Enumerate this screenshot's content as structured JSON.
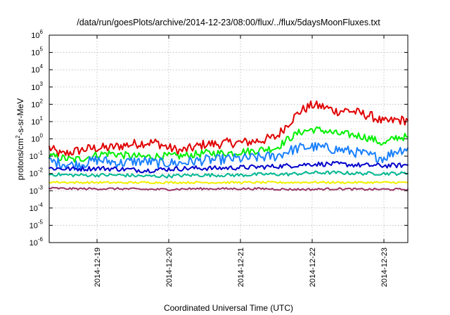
{
  "chart_data": {
    "type": "line",
    "title": "/data/run/goesPlots/archive/2014-12-23/08:00/flux/../flux/5daysMoonFluxes.txt",
    "xlabel": "Coordinated Universal Time (UTC)",
    "ylabel": "protons/cm²-s-sr-MeV",
    "ylabel_parts": {
      "pre": "protons/cm",
      "sup": "2",
      "post": "-s-sr-MeV"
    },
    "yscale": "log",
    "ylim": [
      1e-06,
      1000000.0
    ],
    "yticks": [
      {
        "base": "10",
        "exp": "-6",
        "value": 1e-06
      },
      {
        "base": "10",
        "exp": "-5",
        "value": 1e-05
      },
      {
        "base": "10",
        "exp": "-4",
        "value": 0.0001
      },
      {
        "base": "10",
        "exp": "-3",
        "value": 0.001
      },
      {
        "base": "10",
        "exp": "-2",
        "value": 0.01
      },
      {
        "base": "10",
        "exp": "-1",
        "value": 0.1
      },
      {
        "base": "10",
        "exp": "0",
        "value": 1
      },
      {
        "base": "10",
        "exp": "1",
        "value": 10
      },
      {
        "base": "10",
        "exp": "2",
        "value": 100
      },
      {
        "base": "10",
        "exp": "3",
        "value": 1000
      },
      {
        "base": "10",
        "exp": "4",
        "value": 10000
      },
      {
        "base": "10",
        "exp": "5",
        "value": 100000
      },
      {
        "base": "10",
        "exp": "6",
        "value": 1000000
      }
    ],
    "xlim": [
      "2014-12-18T08:00",
      "2014-12-23T08:00"
    ],
    "xticks": [
      {
        "label": "2014-12-19",
        "value": "2014-12-19T00:00"
      },
      {
        "label": "2014-12-20",
        "value": "2014-12-20T00:00"
      },
      {
        "label": "2014-12-21",
        "value": "2014-12-21T00:00"
      },
      {
        "label": "2014-12-22",
        "value": "2014-12-22T00:00"
      },
      {
        "label": "2014-12-23",
        "value": "2014-12-23T00:00"
      }
    ],
    "grid": true,
    "legend": "none",
    "series": [
      {
        "color": "#e00000",
        "x": [
          "2014-12-18T08:00",
          "2014-12-18T12:00",
          "2014-12-18T16:00",
          "2014-12-18T20:00",
          "2014-12-19T00:00",
          "2014-12-19T04:00",
          "2014-12-19T08:00",
          "2014-12-19T12:00",
          "2014-12-19T16:00",
          "2014-12-19T20:00",
          "2014-12-20T00:00",
          "2014-12-20T04:00",
          "2014-12-20T08:00",
          "2014-12-20T12:00",
          "2014-12-20T16:00",
          "2014-12-20T20:00",
          "2014-12-21T00:00",
          "2014-12-21T04:00",
          "2014-12-21T08:00",
          "2014-12-21T12:00",
          "2014-12-21T16:00",
          "2014-12-21T20:00",
          "2014-12-22T00:00",
          "2014-12-22T04:00",
          "2014-12-22T08:00",
          "2014-12-22T12:00",
          "2014-12-22T16:00",
          "2014-12-22T20:00",
          "2014-12-23T00:00",
          "2014-12-23T04:00",
          "2014-12-23T08:00"
        ],
        "y": [
          0.3,
          0.12,
          0.18,
          0.25,
          0.3,
          0.3,
          0.4,
          0.5,
          0.6,
          0.6,
          0.3,
          0.2,
          0.3,
          0.5,
          0.5,
          0.6,
          0.6,
          0.7,
          0.9,
          1.3,
          8,
          40,
          90,
          70,
          40,
          45,
          30,
          20,
          9,
          12,
          12
        ]
      },
      {
        "color": "#00f000",
        "x": [
          "2014-12-18T08:00",
          "2014-12-18T12:00",
          "2014-12-18T16:00",
          "2014-12-18T20:00",
          "2014-12-19T00:00",
          "2014-12-19T04:00",
          "2014-12-19T08:00",
          "2014-12-19T12:00",
          "2014-12-19T16:00",
          "2014-12-19T20:00",
          "2014-12-20T00:00",
          "2014-12-20T04:00",
          "2014-12-20T08:00",
          "2014-12-20T12:00",
          "2014-12-20T16:00",
          "2014-12-20T20:00",
          "2014-12-21T00:00",
          "2014-12-21T04:00",
          "2014-12-21T08:00",
          "2014-12-21T12:00",
          "2014-12-21T16:00",
          "2014-12-21T20:00",
          "2014-12-22T00:00",
          "2014-12-22T04:00",
          "2014-12-22T08:00",
          "2014-12-22T12:00",
          "2014-12-22T16:00",
          "2014-12-22T20:00",
          "2014-12-23T00:00",
          "2014-12-23T04:00",
          "2014-12-23T08:00"
        ],
        "y": [
          0.1,
          0.08,
          0.06,
          0.08,
          0.12,
          0.15,
          0.12,
          0.1,
          0.09,
          0.1,
          0.1,
          0.1,
          0.12,
          0.15,
          0.15,
          0.15,
          0.18,
          0.2,
          0.25,
          0.3,
          1.0,
          2.5,
          3.5,
          3.0,
          2.0,
          1.8,
          1.5,
          1.0,
          0.5,
          1.2,
          1.3
        ]
      },
      {
        "color": "#1a80ff",
        "x": [
          "2014-12-18T08:00",
          "2014-12-18T12:00",
          "2014-12-18T16:00",
          "2014-12-18T20:00",
          "2014-12-19T00:00",
          "2014-12-19T04:00",
          "2014-12-19T08:00",
          "2014-12-19T12:00",
          "2014-12-19T16:00",
          "2014-12-19T20:00",
          "2014-12-20T00:00",
          "2014-12-20T04:00",
          "2014-12-20T08:00",
          "2014-12-20T12:00",
          "2014-12-20T16:00",
          "2014-12-20T20:00",
          "2014-12-21T00:00",
          "2014-12-21T04:00",
          "2014-12-21T08:00",
          "2014-12-21T12:00",
          "2014-12-21T16:00",
          "2014-12-21T20:00",
          "2014-12-22T00:00",
          "2014-12-22T04:00",
          "2014-12-22T08:00",
          "2014-12-22T12:00",
          "2014-12-22T16:00",
          "2014-12-22T20:00",
          "2014-12-23T00:00",
          "2014-12-23T04:00",
          "2014-12-23T08:00"
        ],
        "y": [
          0.05,
          0.04,
          0.03,
          0.04,
          0.06,
          0.05,
          0.04,
          0.05,
          0.05,
          0.04,
          0.04,
          0.04,
          0.05,
          0.06,
          0.06,
          0.07,
          0.07,
          0.08,
          0.09,
          0.1,
          0.2,
          0.3,
          0.35,
          0.3,
          0.25,
          0.2,
          0.15,
          0.1,
          0.08,
          0.2,
          0.3
        ]
      },
      {
        "color": "#0000cc",
        "x": [
          "2014-12-18T08:00",
          "2014-12-18T16:00",
          "2014-12-19T00:00",
          "2014-12-19T08:00",
          "2014-12-19T16:00",
          "2014-12-20T00:00",
          "2014-12-20T08:00",
          "2014-12-20T16:00",
          "2014-12-21T00:00",
          "2014-12-21T08:00",
          "2014-12-21T16:00",
          "2014-12-22T00:00",
          "2014-12-22T08:00",
          "2014-12-22T16:00",
          "2014-12-23T00:00",
          "2014-12-23T08:00"
        ],
        "y": [
          0.02,
          0.018,
          0.02,
          0.018,
          0.015,
          0.018,
          0.02,
          0.02,
          0.022,
          0.024,
          0.028,
          0.035,
          0.035,
          0.03,
          0.028,
          0.03
        ]
      },
      {
        "color": "#00b890",
        "x": [
          "2014-12-18T08:00",
          "2014-12-18T16:00",
          "2014-12-19T00:00",
          "2014-12-19T08:00",
          "2014-12-19T16:00",
          "2014-12-20T00:00",
          "2014-12-20T08:00",
          "2014-12-20T16:00",
          "2014-12-21T00:00",
          "2014-12-21T08:00",
          "2014-12-21T16:00",
          "2014-12-22T00:00",
          "2014-12-22T08:00",
          "2014-12-22T16:00",
          "2014-12-23T00:00",
          "2014-12-23T08:00"
        ],
        "y": [
          0.009,
          0.008,
          0.008,
          0.008,
          0.007,
          0.007,
          0.008,
          0.008,
          0.008,
          0.009,
          0.009,
          0.011,
          0.011,
          0.01,
          0.01,
          0.01
        ]
      },
      {
        "color": "#f0f000",
        "x": [
          "2014-12-18T08:00",
          "2014-12-18T16:00",
          "2014-12-19T00:00",
          "2014-12-19T08:00",
          "2014-12-19T16:00",
          "2014-12-20T00:00",
          "2014-12-20T08:00",
          "2014-12-20T16:00",
          "2014-12-21T00:00",
          "2014-12-21T08:00",
          "2014-12-21T16:00",
          "2014-12-22T00:00",
          "2014-12-22T08:00",
          "2014-12-22T16:00",
          "2014-12-23T00:00",
          "2014-12-23T08:00"
        ],
        "y": [
          0.0032,
          0.003,
          0.003,
          0.0029,
          0.003,
          0.003,
          0.003,
          0.003,
          0.003,
          0.003,
          0.003,
          0.0031,
          0.003,
          0.003,
          0.003,
          0.003
        ]
      },
      {
        "color": "#993366",
        "x": [
          "2014-12-18T08:00",
          "2014-12-18T16:00",
          "2014-12-19T00:00",
          "2014-12-19T08:00",
          "2014-12-19T16:00",
          "2014-12-20T00:00",
          "2014-12-20T08:00",
          "2014-12-20T16:00",
          "2014-12-21T00:00",
          "2014-12-21T08:00",
          "2014-12-21T16:00",
          "2014-12-22T00:00",
          "2014-12-22T08:00",
          "2014-12-22T16:00",
          "2014-12-23T00:00",
          "2014-12-23T08:00"
        ],
        "y": [
          0.0014,
          0.0013,
          0.0013,
          0.0013,
          0.0012,
          0.0012,
          0.0013,
          0.0013,
          0.0013,
          0.0013,
          0.0012,
          0.0012,
          0.0013,
          0.0012,
          0.0012,
          0.0012
        ]
      }
    ]
  }
}
